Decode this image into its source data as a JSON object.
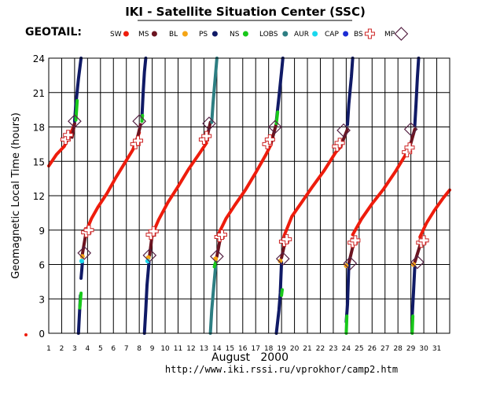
{
  "header": {
    "title": "IKI - Satellite Situation Center (SSC)",
    "satellite": "GEOTAIL:",
    "url": "http://www.iki.rssi.ru/vprokhor/camp2.htm"
  },
  "colors": {
    "SW": "#ee1c0c",
    "MS": "#6b1420",
    "BL": "#f5a515",
    "PS": "#101a66",
    "NS": "#18c81a",
    "LOBS": "#2d7e82",
    "AUR": "#19d8ee",
    "CAP": "#1c2cd4",
    "BS": "#cc2222",
    "MP": "#552244"
  },
  "legend": [
    {
      "label": "SW",
      "marker": "dot",
      "color": "#ee1c0c"
    },
    {
      "label": "MS",
      "marker": "dot",
      "color": "#6b1420"
    },
    {
      "label": "BL",
      "marker": "dot",
      "color": "#f5a515"
    },
    {
      "label": "PS",
      "marker": "dot",
      "color": "#101a66"
    },
    {
      "label": "NS",
      "marker": "dot",
      "color": "#18c81a"
    },
    {
      "label": "LOBS",
      "marker": "dot",
      "color": "#2d7e82"
    },
    {
      "label": "AUR",
      "marker": "dot",
      "color": "#19d8ee"
    },
    {
      "label": "CAP",
      "marker": "dot",
      "color": "#1c2cd4"
    },
    {
      "label": "BS",
      "marker": "plus",
      "color": "#cc2222"
    },
    {
      "label": "MP",
      "marker": "diamond",
      "color": "#552244"
    }
  ],
  "chart_data": {
    "type": "scatter",
    "title": "IKI - Satellite Situation Center (SSC)",
    "xlabel": "August   2000",
    "ylabel": "Geomagnetic  Local Time  (hours)",
    "xlim": [
      1,
      32
    ],
    "ylim": [
      0,
      24
    ],
    "yticks": [
      24,
      21,
      18,
      15,
      12,
      9,
      6,
      3,
      0
    ],
    "ytick_labels": [
      "24",
      "21",
      "18",
      "15",
      "12",
      "9",
      "6",
      "3",
      "0"
    ],
    "xticks": [
      1,
      2,
      3,
      4,
      5,
      6,
      7,
      8,
      9,
      10,
      11,
      12,
      13,
      14,
      15,
      16,
      17,
      18,
      19,
      20,
      21,
      22,
      23,
      24,
      25,
      26,
      27,
      28,
      29,
      30,
      31
    ],
    "xtick_labels": [
      "1",
      "2",
      "3",
      "4",
      "5",
      "6",
      "7",
      "8",
      "9",
      "10",
      "11",
      "12",
      "13",
      "14",
      "15",
      "16",
      "17",
      "18",
      "19",
      "20",
      "21",
      "22",
      "23",
      "24",
      "25",
      "26",
      "27",
      "28",
      "29",
      "30",
      "31"
    ],
    "grid": true,
    "series": [
      {
        "name": "SW",
        "color": "#ee1c0c",
        "segments": [
          [
            [
              1.0,
              14.6
            ],
            [
              1.6,
              15.6
            ],
            [
              2.2,
              16.3
            ],
            [
              2.8,
              17.7
            ],
            [
              3.0,
              18.3
            ]
          ],
          [
            [
              3.9,
              8.9
            ],
            [
              4.3,
              10.0
            ],
            [
              4.8,
              11.0
            ],
            [
              5.5,
              12.2
            ],
            [
              6.2,
              13.6
            ],
            [
              6.9,
              14.9
            ],
            [
              7.5,
              16.0
            ],
            [
              8.0,
              17.5
            ]
          ],
          [
            [
              9.0,
              8.6
            ],
            [
              9.5,
              9.9
            ],
            [
              10.2,
              11.4
            ],
            [
              11.0,
              12.8
            ],
            [
              11.8,
              14.3
            ],
            [
              12.6,
              15.6
            ],
            [
              13.2,
              16.6
            ]
          ],
          [
            [
              14.1,
              8.6
            ],
            [
              14.7,
              10.0
            ],
            [
              15.4,
              11.2
            ],
            [
              16.2,
              12.5
            ],
            [
              17.0,
              14.0
            ],
            [
              17.8,
              15.6
            ],
            [
              18.2,
              16.5
            ]
          ],
          [
            [
              19.2,
              8.5
            ],
            [
              19.8,
              10.2
            ],
            [
              20.6,
              11.5
            ],
            [
              21.4,
              12.8
            ],
            [
              22.3,
              14.2
            ],
            [
              23.2,
              15.8
            ],
            [
              23.6,
              16.3
            ]
          ],
          [
            [
              24.5,
              8.6
            ],
            [
              25.2,
              10.0
            ],
            [
              26.0,
              11.3
            ],
            [
              26.9,
              12.6
            ],
            [
              27.8,
              14.1
            ],
            [
              28.6,
              15.6
            ],
            [
              28.9,
              16.3
            ]
          ],
          [
            [
              29.7,
              8.4
            ],
            [
              30.2,
              9.6
            ],
            [
              30.8,
              10.7
            ],
            [
              31.5,
              11.8
            ],
            [
              32.0,
              12.5
            ]
          ]
        ]
      },
      {
        "name": "MS",
        "color": "#6b1420",
        "segments": [
          [
            [
              2.8,
              17.1
            ],
            [
              3.0,
              18.3
            ]
          ],
          [
            [
              7.8,
              16.8
            ],
            [
              8.1,
              18.2
            ]
          ],
          [
            [
              13.2,
              16.9
            ],
            [
              13.5,
              18.4
            ]
          ],
          [
            [
              18.2,
              16.6
            ],
            [
              18.6,
              18.3
            ]
          ],
          [
            [
              23.6,
              16.4
            ],
            [
              24.1,
              17.8
            ]
          ],
          [
            [
              28.9,
              16.2
            ],
            [
              29.3,
              17.8
            ]
          ],
          [
            [
              3.6,
              6.9
            ],
            [
              3.9,
              8.9
            ]
          ],
          [
            [
              8.8,
              6.8
            ],
            [
              9.0,
              8.6
            ]
          ],
          [
            [
              14.0,
              6.7
            ],
            [
              14.3,
              8.5
            ]
          ],
          [
            [
              19.0,
              6.6
            ],
            [
              19.3,
              8.1
            ]
          ],
          [
            [
              24.2,
              6.1
            ],
            [
              24.6,
              8.0
            ]
          ],
          [
            [
              29.3,
              6.2
            ],
            [
              29.8,
              8.0
            ]
          ]
        ]
      },
      {
        "name": "PS",
        "color": "#101a66",
        "segments": [
          [
            [
              3.0,
              18.5
            ],
            [
              3.1,
              20.0
            ],
            [
              3.3,
              22.2
            ],
            [
              3.5,
              24.0
            ]
          ],
          [
            [
              8.2,
              18.8
            ],
            [
              8.3,
              21.0
            ],
            [
              8.4,
              22.8
            ],
            [
              8.5,
              24.0
            ]
          ],
          [
            [
              18.6,
              18.5
            ],
            [
              18.8,
              20.6
            ],
            [
              19.0,
              22.8
            ],
            [
              19.1,
              24.0
            ]
          ],
          [
            [
              24.1,
              18.2
            ],
            [
              24.2,
              20.0
            ],
            [
              24.4,
              22.4
            ],
            [
              24.5,
              24.0
            ]
          ],
          [
            [
              29.3,
              18.1
            ],
            [
              29.4,
              20.0
            ],
            [
              29.5,
              22.3
            ],
            [
              29.6,
              24.0
            ]
          ],
          [
            [
              3.3,
              0.0
            ],
            [
              3.35,
              1.2
            ],
            [
              3.45,
              3.3
            ]
          ],
          [
            [
              3.5,
              4.8
            ],
            [
              3.55,
              5.5
            ],
            [
              3.6,
              6.2
            ]
          ],
          [
            [
              8.4,
              0.0
            ],
            [
              8.5,
              2.0
            ],
            [
              8.6,
              4.2
            ],
            [
              8.75,
              6.2
            ]
          ],
          [
            [
              18.6,
              0.0
            ],
            [
              18.8,
              2.0
            ],
            [
              18.9,
              3.5
            ],
            [
              19.0,
              6.2
            ]
          ],
          [
            [
              24.0,
              1.0
            ],
            [
              24.1,
              2.5
            ],
            [
              24.2,
              6.0
            ]
          ],
          [
            [
              29.1,
              1.5
            ],
            [
              29.2,
              3.5
            ],
            [
              29.3,
              5.8
            ]
          ]
        ]
      },
      {
        "name": "NS",
        "color": "#18c81a",
        "segments": [
          [
            [
              3.1,
              18.6
            ],
            [
              3.2,
              20.3
            ]
          ],
          [
            [
              3.4,
              2.2
            ],
            [
              3.5,
              3.5
            ]
          ],
          [
            [
              8.2,
              18.5
            ],
            [
              8.25,
              19.0
            ]
          ],
          [
            [
              13.8,
              5.8
            ],
            [
              13.9,
              6.2
            ]
          ],
          [
            [
              18.6,
              18.3
            ],
            [
              18.7,
              19.3
            ]
          ],
          [
            [
              19.0,
              3.3
            ],
            [
              19.05,
              3.8
            ]
          ],
          [
            [
              24.0,
              0.0
            ],
            [
              24.05,
              1.5
            ]
          ],
          [
            [
              29.1,
              0.0
            ],
            [
              29.15,
              1.5
            ]
          ]
        ]
      },
      {
        "name": "LOBS",
        "color": "#2d7e82",
        "segments": [
          [
            [
              13.6,
              18.4
            ],
            [
              13.7,
              20.0
            ],
            [
              13.85,
              22.0
            ],
            [
              14.0,
              24.0
            ]
          ],
          [
            [
              13.5,
              0.0
            ],
            [
              13.6,
              2.0
            ],
            [
              13.75,
              4.0
            ],
            [
              13.9,
              5.8
            ]
          ]
        ]
      },
      {
        "name": "BL",
        "color": "#f5a515",
        "points": [
          [
            3.6,
            6.7
          ],
          [
            8.7,
            6.6
          ],
          [
            13.9,
            6.5
          ],
          [
            18.9,
            6.3
          ],
          [
            24.0,
            5.9
          ],
          [
            29.2,
            6.0
          ]
        ]
      },
      {
        "name": "AUR",
        "color": "#19d8ee",
        "points": [
          [
            3.55,
            6.3
          ],
          [
            8.65,
            6.3
          ]
        ]
      },
      {
        "name": "BS",
        "color": "#cc2222",
        "marker": "plus",
        "points": [
          [
            2.3,
            16.9
          ],
          [
            2.5,
            17.3
          ],
          [
            7.7,
            16.5
          ],
          [
            7.9,
            16.8
          ],
          [
            13.0,
            16.9
          ],
          [
            13.2,
            17.2
          ],
          [
            17.9,
            16.5
          ],
          [
            18.1,
            16.9
          ],
          [
            23.3,
            16.3
          ],
          [
            23.5,
            16.6
          ],
          [
            28.7,
            15.8
          ],
          [
            28.9,
            16.2
          ],
          [
            3.9,
            8.8
          ],
          [
            4.1,
            9.0
          ],
          [
            8.9,
            8.6
          ],
          [
            9.1,
            8.9
          ],
          [
            14.2,
            8.4
          ],
          [
            14.4,
            8.6
          ],
          [
            19.2,
            8.0
          ],
          [
            19.4,
            8.2
          ],
          [
            24.5,
            7.9
          ],
          [
            24.7,
            8.1
          ],
          [
            29.8,
            7.9
          ],
          [
            30.0,
            8.1
          ]
        ]
      },
      {
        "name": "MP",
        "color": "#552244",
        "marker": "diamond",
        "points": [
          [
            3.0,
            18.5
          ],
          [
            8.0,
            18.5
          ],
          [
            13.4,
            18.3
          ],
          [
            18.5,
            18.0
          ],
          [
            23.8,
            17.7
          ],
          [
            29.0,
            17.8
          ],
          [
            3.75,
            7.0
          ],
          [
            8.8,
            6.8
          ],
          [
            14.0,
            6.7
          ],
          [
            19.1,
            6.5
          ],
          [
            24.3,
            6.1
          ],
          [
            29.5,
            6.2
          ]
        ]
      }
    ]
  }
}
